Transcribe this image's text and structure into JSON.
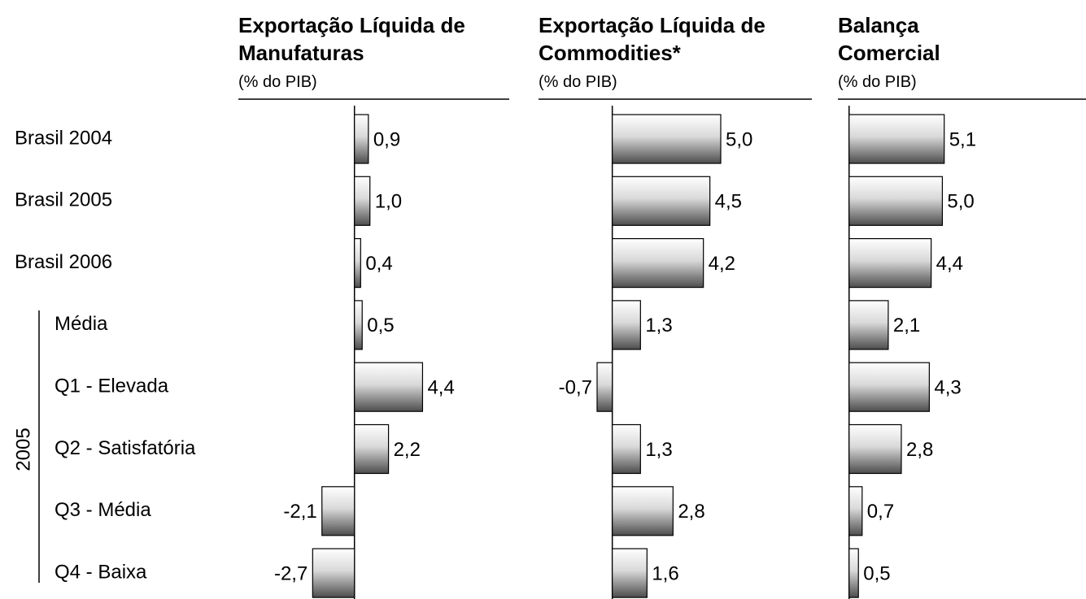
{
  "categories": [
    "Brasil 2004",
    "Brasil 2005",
    "Brasil 2006",
    "Média",
    "Q1 - Elevada",
    "Q2 - Satisfatória",
    "Q3 - Média",
    "Q4 - Baixa"
  ],
  "group_label": "2005",
  "chart_data": [
    {
      "type": "bar",
      "orientation": "horizontal",
      "title": "Exportação Líquida de Manufaturas",
      "subtitle": "(% do PIB)",
      "values": [
        0.9,
        1.0,
        0.4,
        0.5,
        4.4,
        2.2,
        -2.1,
        -2.7
      ],
      "value_labels": [
        "0,9",
        "1,0",
        "0,4",
        "0,5",
        "4,4",
        "2,2",
        "-2,1",
        "-2,7"
      ],
      "xlim": [
        -7.5,
        10
      ]
    },
    {
      "type": "bar",
      "orientation": "horizontal",
      "title": "Exportação Líquida de Commodities*",
      "subtitle": "(% do PIB)",
      "values": [
        5.0,
        4.5,
        4.2,
        1.3,
        -0.7,
        1.3,
        2.8,
        1.6
      ],
      "value_labels": [
        "5,0",
        "4,5",
        "4,2",
        "1,3",
        "-0,7",
        "1,3",
        "2,8",
        "1,6"
      ],
      "xlim": [
        -3.4,
        9.2
      ]
    },
    {
      "type": "bar",
      "orientation": "horizontal",
      "title": "Balança Comercial",
      "subtitle": "(% do PIB)",
      "values": [
        5.1,
        5.0,
        4.4,
        2.1,
        4.3,
        2.8,
        0.7,
        0.5
      ],
      "value_labels": [
        "5,1",
        "5,0",
        "4,4",
        "2,1",
        "4,3",
        "2,8",
        "0,7",
        "0,5"
      ],
      "xlim": [
        -0.6,
        12.7
      ]
    }
  ]
}
